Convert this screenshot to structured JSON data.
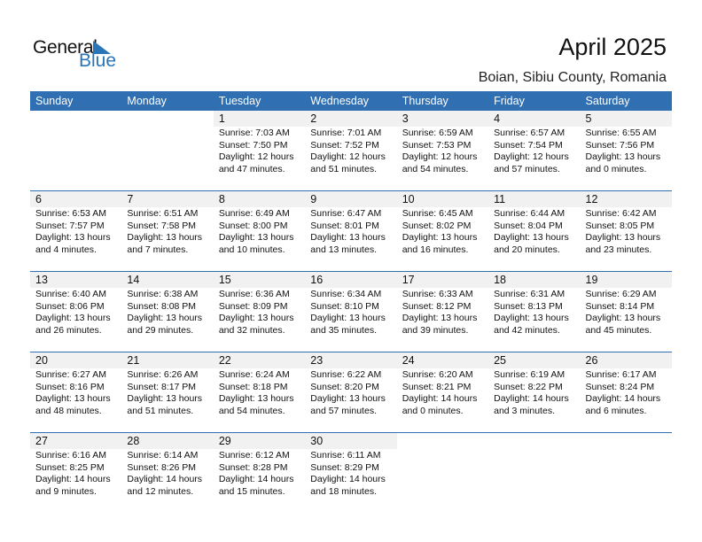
{
  "logo": {
    "line1": "General",
    "line2": "Blue"
  },
  "title": "April 2025",
  "location": "Boian, Sibiu County, Romania",
  "colors": {
    "header_bg": "#2f6fb2",
    "brand_blue": "#2a74b8",
    "day_band": "#f1f1f1"
  },
  "weekdays": [
    "Sunday",
    "Monday",
    "Tuesday",
    "Wednesday",
    "Thursday",
    "Friday",
    "Saturday"
  ],
  "weeks": [
    [
      null,
      null,
      {
        "day": "1",
        "sunrise": "Sunrise: 7:03 AM",
        "sunset": "Sunset: 7:50 PM",
        "daylight1": "Daylight: 12 hours",
        "daylight2": "and 47 minutes."
      },
      {
        "day": "2",
        "sunrise": "Sunrise: 7:01 AM",
        "sunset": "Sunset: 7:52 PM",
        "daylight1": "Daylight: 12 hours",
        "daylight2": "and 51 minutes."
      },
      {
        "day": "3",
        "sunrise": "Sunrise: 6:59 AM",
        "sunset": "Sunset: 7:53 PM",
        "daylight1": "Daylight: 12 hours",
        "daylight2": "and 54 minutes."
      },
      {
        "day": "4",
        "sunrise": "Sunrise: 6:57 AM",
        "sunset": "Sunset: 7:54 PM",
        "daylight1": "Daylight: 12 hours",
        "daylight2": "and 57 minutes."
      },
      {
        "day": "5",
        "sunrise": "Sunrise: 6:55 AM",
        "sunset": "Sunset: 7:56 PM",
        "daylight1": "Daylight: 13 hours",
        "daylight2": "and 0 minutes."
      }
    ],
    [
      {
        "day": "6",
        "sunrise": "Sunrise: 6:53 AM",
        "sunset": "Sunset: 7:57 PM",
        "daylight1": "Daylight: 13 hours",
        "daylight2": "and 4 minutes."
      },
      {
        "day": "7",
        "sunrise": "Sunrise: 6:51 AM",
        "sunset": "Sunset: 7:58 PM",
        "daylight1": "Daylight: 13 hours",
        "daylight2": "and 7 minutes."
      },
      {
        "day": "8",
        "sunrise": "Sunrise: 6:49 AM",
        "sunset": "Sunset: 8:00 PM",
        "daylight1": "Daylight: 13 hours",
        "daylight2": "and 10 minutes."
      },
      {
        "day": "9",
        "sunrise": "Sunrise: 6:47 AM",
        "sunset": "Sunset: 8:01 PM",
        "daylight1": "Daylight: 13 hours",
        "daylight2": "and 13 minutes."
      },
      {
        "day": "10",
        "sunrise": "Sunrise: 6:45 AM",
        "sunset": "Sunset: 8:02 PM",
        "daylight1": "Daylight: 13 hours",
        "daylight2": "and 16 minutes."
      },
      {
        "day": "11",
        "sunrise": "Sunrise: 6:44 AM",
        "sunset": "Sunset: 8:04 PM",
        "daylight1": "Daylight: 13 hours",
        "daylight2": "and 20 minutes."
      },
      {
        "day": "12",
        "sunrise": "Sunrise: 6:42 AM",
        "sunset": "Sunset: 8:05 PM",
        "daylight1": "Daylight: 13 hours",
        "daylight2": "and 23 minutes."
      }
    ],
    [
      {
        "day": "13",
        "sunrise": "Sunrise: 6:40 AM",
        "sunset": "Sunset: 8:06 PM",
        "daylight1": "Daylight: 13 hours",
        "daylight2": "and 26 minutes."
      },
      {
        "day": "14",
        "sunrise": "Sunrise: 6:38 AM",
        "sunset": "Sunset: 8:08 PM",
        "daylight1": "Daylight: 13 hours",
        "daylight2": "and 29 minutes."
      },
      {
        "day": "15",
        "sunrise": "Sunrise: 6:36 AM",
        "sunset": "Sunset: 8:09 PM",
        "daylight1": "Daylight: 13 hours",
        "daylight2": "and 32 minutes."
      },
      {
        "day": "16",
        "sunrise": "Sunrise: 6:34 AM",
        "sunset": "Sunset: 8:10 PM",
        "daylight1": "Daylight: 13 hours",
        "daylight2": "and 35 minutes."
      },
      {
        "day": "17",
        "sunrise": "Sunrise: 6:33 AM",
        "sunset": "Sunset: 8:12 PM",
        "daylight1": "Daylight: 13 hours",
        "daylight2": "and 39 minutes."
      },
      {
        "day": "18",
        "sunrise": "Sunrise: 6:31 AM",
        "sunset": "Sunset: 8:13 PM",
        "daylight1": "Daylight: 13 hours",
        "daylight2": "and 42 minutes."
      },
      {
        "day": "19",
        "sunrise": "Sunrise: 6:29 AM",
        "sunset": "Sunset: 8:14 PM",
        "daylight1": "Daylight: 13 hours",
        "daylight2": "and 45 minutes."
      }
    ],
    [
      {
        "day": "20",
        "sunrise": "Sunrise: 6:27 AM",
        "sunset": "Sunset: 8:16 PM",
        "daylight1": "Daylight: 13 hours",
        "daylight2": "and 48 minutes."
      },
      {
        "day": "21",
        "sunrise": "Sunrise: 6:26 AM",
        "sunset": "Sunset: 8:17 PM",
        "daylight1": "Daylight: 13 hours",
        "daylight2": "and 51 minutes."
      },
      {
        "day": "22",
        "sunrise": "Sunrise: 6:24 AM",
        "sunset": "Sunset: 8:18 PM",
        "daylight1": "Daylight: 13 hours",
        "daylight2": "and 54 minutes."
      },
      {
        "day": "23",
        "sunrise": "Sunrise: 6:22 AM",
        "sunset": "Sunset: 8:20 PM",
        "daylight1": "Daylight: 13 hours",
        "daylight2": "and 57 minutes."
      },
      {
        "day": "24",
        "sunrise": "Sunrise: 6:20 AM",
        "sunset": "Sunset: 8:21 PM",
        "daylight1": "Daylight: 14 hours",
        "daylight2": "and 0 minutes."
      },
      {
        "day": "25",
        "sunrise": "Sunrise: 6:19 AM",
        "sunset": "Sunset: 8:22 PM",
        "daylight1": "Daylight: 14 hours",
        "daylight2": "and 3 minutes."
      },
      {
        "day": "26",
        "sunrise": "Sunrise: 6:17 AM",
        "sunset": "Sunset: 8:24 PM",
        "daylight1": "Daylight: 14 hours",
        "daylight2": "and 6 minutes."
      }
    ],
    [
      {
        "day": "27",
        "sunrise": "Sunrise: 6:16 AM",
        "sunset": "Sunset: 8:25 PM",
        "daylight1": "Daylight: 14 hours",
        "daylight2": "and 9 minutes."
      },
      {
        "day": "28",
        "sunrise": "Sunrise: 6:14 AM",
        "sunset": "Sunset: 8:26 PM",
        "daylight1": "Daylight: 14 hours",
        "daylight2": "and 12 minutes."
      },
      {
        "day": "29",
        "sunrise": "Sunrise: 6:12 AM",
        "sunset": "Sunset: 8:28 PM",
        "daylight1": "Daylight: 14 hours",
        "daylight2": "and 15 minutes."
      },
      {
        "day": "30",
        "sunrise": "Sunrise: 6:11 AM",
        "sunset": "Sunset: 8:29 PM",
        "daylight1": "Daylight: 14 hours",
        "daylight2": "and 18 minutes."
      },
      null,
      null,
      null
    ]
  ]
}
